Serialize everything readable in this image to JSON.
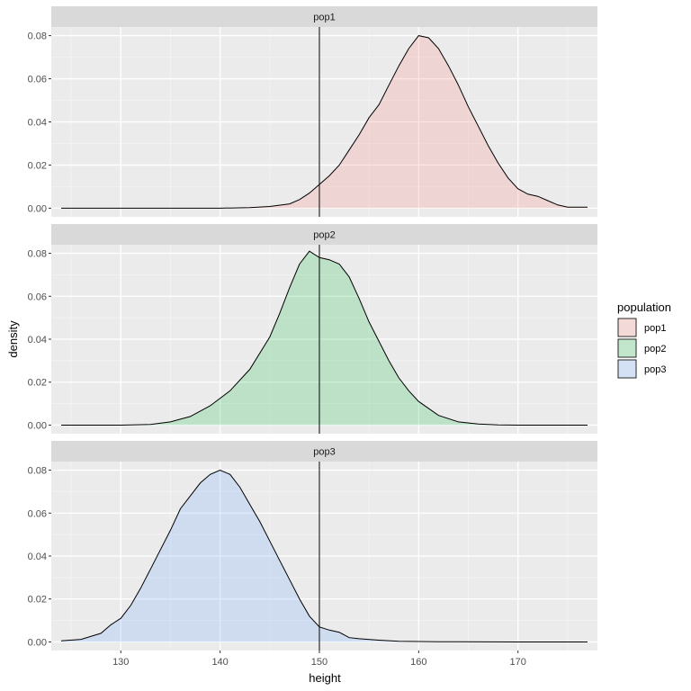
{
  "chart_data": {
    "type": "area",
    "xlabel": "height",
    "ylabel": "density",
    "xlim": [
      123,
      178
    ],
    "ylim": [
      -0.004,
      0.084
    ],
    "x_ticks": [
      130,
      140,
      150,
      160,
      170
    ],
    "x_tick_labels": [
      "130",
      "140",
      "150",
      "160",
      "170"
    ],
    "y_ticks": [
      0,
      0.02,
      0.04,
      0.06,
      0.08
    ],
    "y_tick_labels": [
      "0.00",
      "0.02",
      "0.04",
      "0.06",
      "0.08"
    ],
    "vline_x": 150,
    "grid": true,
    "legend": {
      "title": "population",
      "position": "right",
      "entries": [
        {
          "label": "pop1",
          "fill": "#f8766d"
        },
        {
          "label": "pop2",
          "fill": "#00ba38"
        },
        {
          "label": "pop3",
          "fill": "#619cff"
        }
      ]
    },
    "panels": [
      {
        "strip": "pop1",
        "fill": "#f8766d",
        "x": [
          124,
          132,
          140,
          143,
          145,
          147,
          148,
          149,
          150,
          151,
          152,
          153,
          154,
          155,
          156,
          157,
          158,
          159,
          160,
          161,
          162,
          163,
          164,
          165,
          166,
          167,
          168,
          169,
          170,
          171,
          172,
          173,
          174,
          175,
          177
        ],
        "values": [
          0,
          0,
          0,
          0.0003,
          0.0008,
          0.002,
          0.004,
          0.007,
          0.011,
          0.015,
          0.02,
          0.027,
          0.034,
          0.042,
          0.048,
          0.057,
          0.066,
          0.074,
          0.08,
          0.079,
          0.074,
          0.066,
          0.057,
          0.047,
          0.038,
          0.029,
          0.021,
          0.014,
          0.009,
          0.0065,
          0.0055,
          0.0035,
          0.0015,
          0.0005,
          0.0005
        ]
      },
      {
        "strip": "pop2",
        "fill": "#00ba38",
        "x": [
          124,
          130,
          133,
          135,
          137,
          139,
          141,
          143,
          145,
          146,
          147,
          148,
          149,
          150,
          151,
          152,
          153,
          154,
          155,
          156,
          157,
          158,
          159,
          160,
          162,
          164,
          166,
          168,
          170,
          172,
          177
        ],
        "values": [
          0,
          0,
          0.0003,
          0.0015,
          0.004,
          0.009,
          0.016,
          0.026,
          0.041,
          0.052,
          0.064,
          0.075,
          0.081,
          0.078,
          0.077,
          0.075,
          0.069,
          0.059,
          0.048,
          0.039,
          0.03,
          0.022,
          0.016,
          0.011,
          0.0045,
          0.0015,
          0.0005,
          0.0001,
          0,
          0,
          0
        ]
      },
      {
        "strip": "pop3",
        "fill": "#619cff",
        "x": [
          124,
          126,
          128,
          129,
          130,
          131,
          132,
          133,
          134,
          135,
          136,
          137,
          138,
          139,
          140,
          141,
          142,
          143,
          144,
          145,
          146,
          147,
          148,
          149,
          150,
          151,
          152,
          153,
          154,
          156,
          158,
          162,
          170,
          177
        ],
        "values": [
          0.0005,
          0.0012,
          0.004,
          0.008,
          0.011,
          0.017,
          0.025,
          0.034,
          0.043,
          0.052,
          0.062,
          0.068,
          0.074,
          0.078,
          0.08,
          0.078,
          0.072,
          0.064,
          0.056,
          0.047,
          0.038,
          0.029,
          0.02,
          0.012,
          0.007,
          0.0055,
          0.0045,
          0.002,
          0.0015,
          0.0008,
          0.0003,
          0.0001,
          0,
          0
        ]
      }
    ]
  }
}
